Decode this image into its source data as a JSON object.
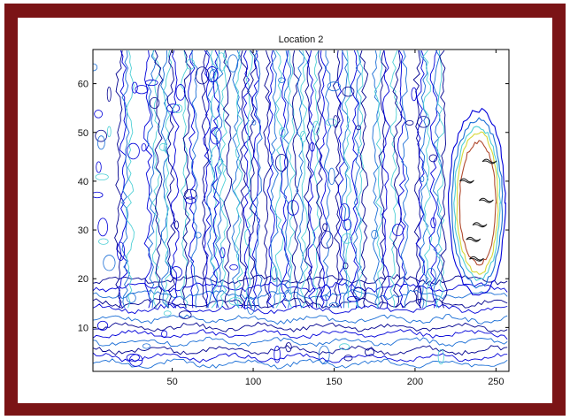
{
  "chart_data": {
    "type": "contour",
    "title": "Location 2",
    "xlabel": "",
    "ylabel": "",
    "xlim": [
      1,
      258
    ],
    "ylim": [
      1,
      67
    ],
    "xticks": [
      50,
      100,
      150,
      200,
      250
    ],
    "yticks": [
      10,
      20,
      30,
      40,
      50,
      60
    ],
    "grid": false,
    "legend": "none",
    "levels": [
      {
        "name": "level-1",
        "color": "#00008f"
      },
      {
        "name": "level-2",
        "color": "#0000d9"
      },
      {
        "name": "level-3",
        "color": "#1a6ed6"
      },
      {
        "name": "level-4",
        "color": "#4fd0d6"
      },
      {
        "name": "level-5",
        "color": "#d8d83a"
      },
      {
        "name": "level-6",
        "color": "#b04a2e"
      },
      {
        "name": "level-7",
        "color": "#1a1a1a"
      }
    ],
    "features": {
      "hot_region": {
        "x": [
          222,
          255
        ],
        "y": [
          19,
          52
        ]
      },
      "vertical_bands_x": [
        20,
        38,
        48,
        60,
        72,
        80,
        92,
        100,
        112,
        122,
        132,
        142,
        155,
        165,
        178,
        190,
        204,
        214
      ]
    }
  }
}
